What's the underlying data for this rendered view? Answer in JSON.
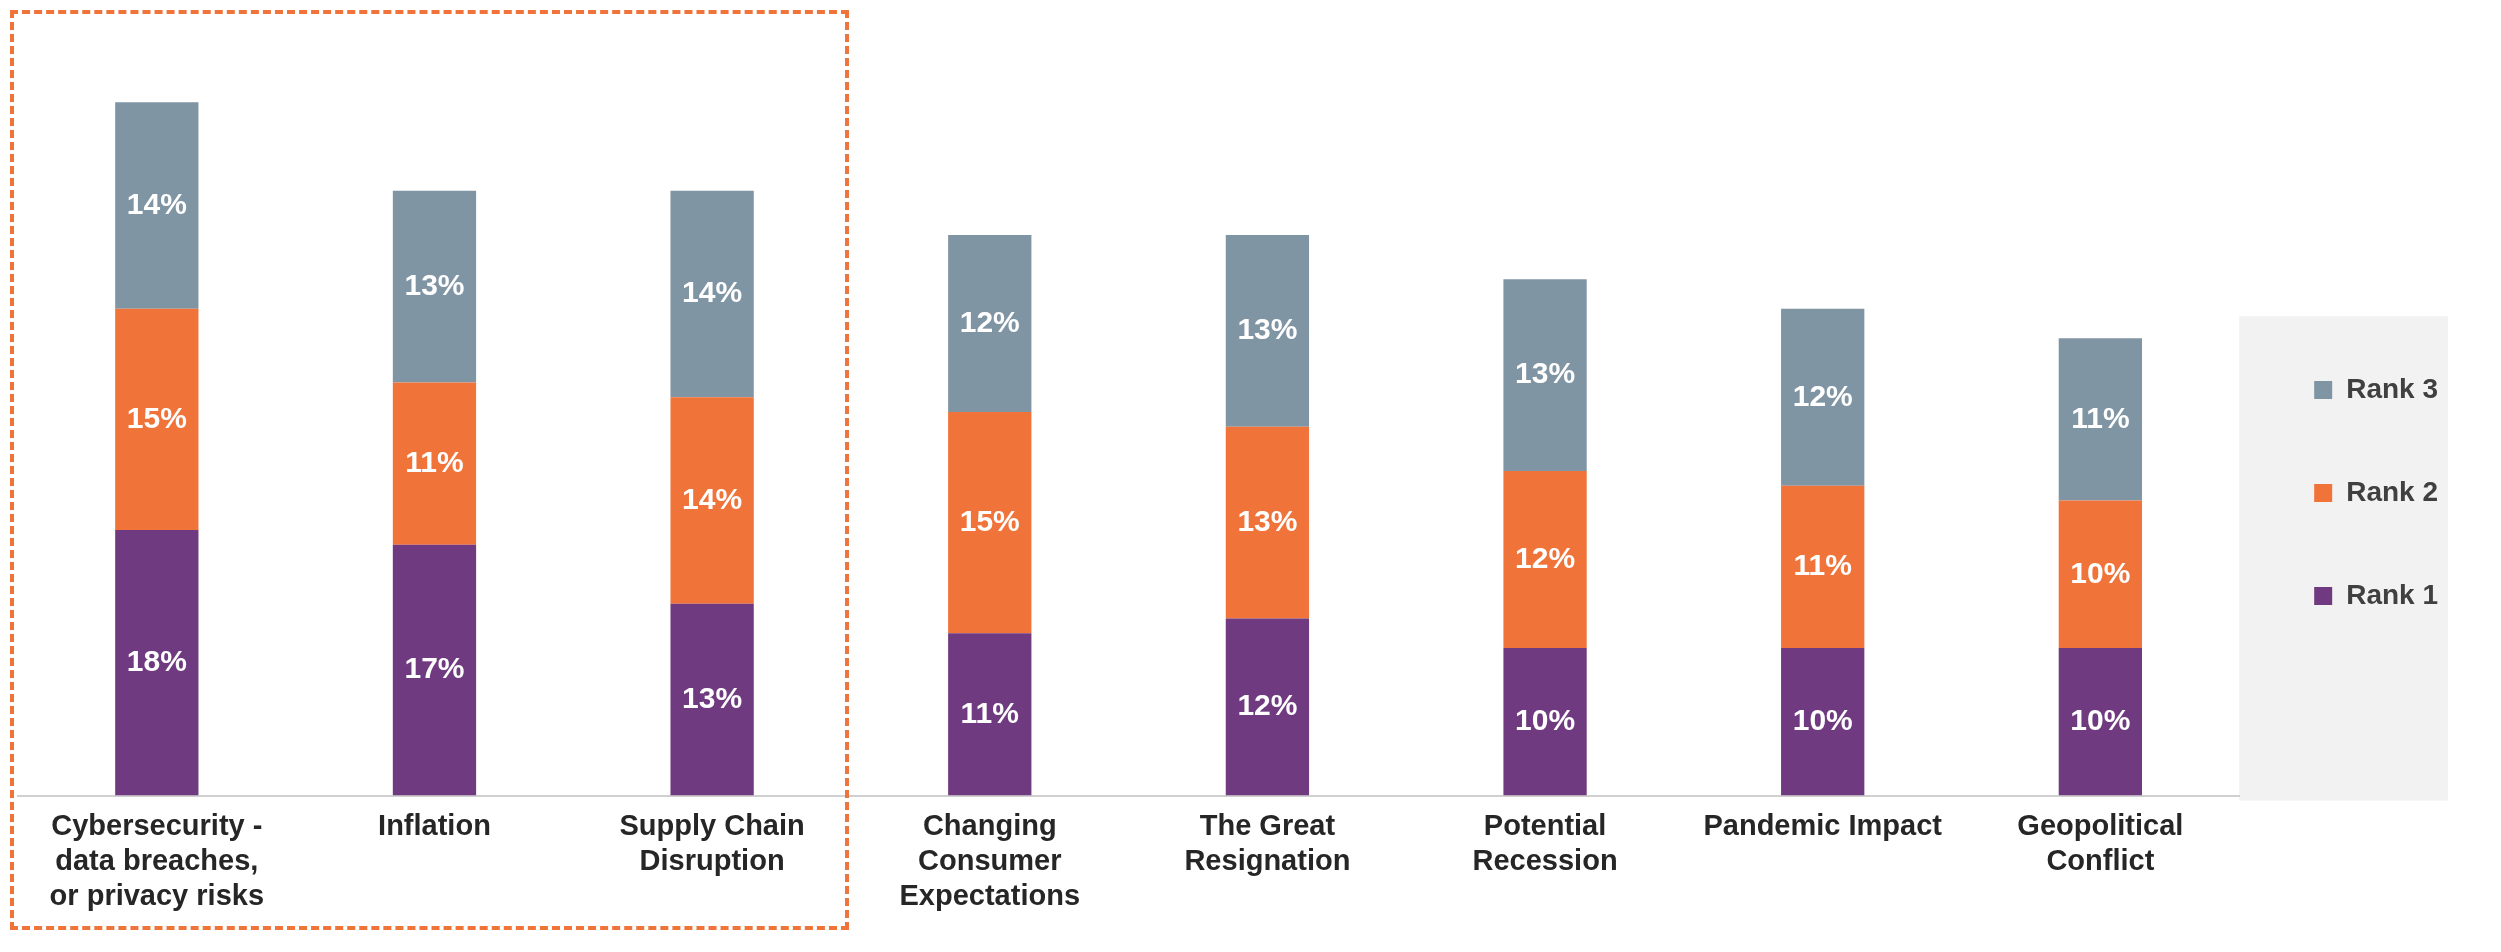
{
  "chart_data": {
    "type": "bar",
    "stacked": true,
    "legend": "right",
    "grid": false,
    "categories": [
      "Cybersecurity - data breaches, or privacy risks",
      "Inflation",
      "Supply Chain Disruption",
      "Changing Consumer Expectations",
      "The Great Resignation",
      "Potential Recession",
      "Pandemic Impact",
      "Geopolitical Conflict"
    ],
    "series": [
      {
        "name": "Rank 1",
        "color": "#6f3a7f",
        "values": [
          18,
          17,
          13,
          11,
          12,
          10,
          10,
          10
        ],
        "value_labels": [
          "18%",
          "17%",
          "13%",
          "11%",
          "12%",
          "10%",
          "10%",
          "10%"
        ]
      },
      {
        "name": "Rank 2",
        "color": "#f0733a",
        "values": [
          15,
          11,
          14,
          15,
          13,
          12,
          11,
          10
        ],
        "value_labels": [
          "15%",
          "11%",
          "14%",
          "15%",
          "13%",
          "12%",
          "11%",
          "10%"
        ]
      },
      {
        "name": "Rank 3",
        "color": "#8095a4",
        "values": [
          14,
          13,
          14,
          12,
          13,
          13,
          12,
          11
        ],
        "value_labels": [
          "14%",
          "13%",
          "14%",
          "12%",
          "13%",
          "13%",
          "12%",
          "11%"
        ]
      }
    ]
  }
}
